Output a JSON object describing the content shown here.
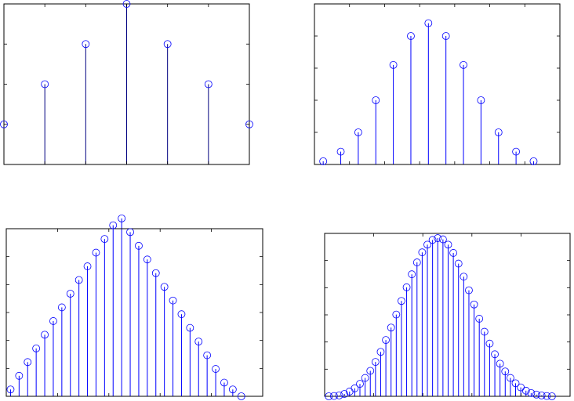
{
  "chart_data": [
    {
      "type": "stem",
      "color": "#0000ff",
      "stem_color": "#000080",
      "x": [
        0,
        1,
        2,
        3,
        4,
        5,
        6
      ],
      "values": [
        1,
        2,
        3,
        4,
        3,
        2,
        1
      ],
      "xlim": [
        0,
        6
      ],
      "ylim": [
        0,
        4
      ],
      "xticks": 6,
      "yticks": 4,
      "grid": false
    },
    {
      "type": "stem",
      "color": "#0000ff",
      "stem_color": "#0000ff",
      "x": [
        0,
        1,
        2,
        3,
        4,
        5,
        6,
        7,
        8,
        9,
        10,
        11,
        12
      ],
      "values": [
        1,
        4,
        10,
        20,
        31,
        40,
        44,
        40,
        31,
        20,
        10,
        4,
        1
      ],
      "xlim": [
        -0.5,
        13.5
      ],
      "ylim": [
        0,
        50
      ],
      "xticks": 7,
      "yticks": 5,
      "grid": false
    },
    {
      "type": "stem",
      "color": "#0000ff",
      "stem_color": "#0000ff",
      "x": [
        0,
        1,
        2,
        3,
        4,
        5,
        6,
        7,
        8,
        9,
        10,
        11,
        12,
        13,
        14,
        15,
        16,
        17,
        18,
        19,
        20,
        21,
        22,
        23,
        24,
        25,
        26,
        27
      ],
      "values": [
        1,
        3,
        5,
        7,
        9,
        11,
        13,
        15,
        17,
        19,
        21,
        23,
        25,
        26,
        24,
        22,
        20,
        18,
        16,
        14,
        12,
        10,
        8,
        6,
        4,
        2,
        1,
        0
      ],
      "xlim": [
        -0.5,
        29.5
      ],
      "ylim": [
        0,
        24.5
      ],
      "xticks": 5,
      "yticks": 6,
      "grid": false
    },
    {
      "type": "stem",
      "color": "#0000ff",
      "stem_color": "#0000ff",
      "x": [
        0,
        1,
        2,
        3,
        4,
        5,
        6,
        7,
        8,
        9,
        10,
        11,
        12,
        13,
        14,
        15,
        16,
        17,
        18,
        19,
        20,
        21,
        22,
        23,
        24,
        25,
        26,
        27,
        28,
        29,
        30,
        31,
        32,
        33,
        34,
        35,
        36,
        37,
        38,
        39,
        40,
        41,
        42,
        43
      ],
      "values": [
        0,
        0.05,
        0.15,
        0.4,
        0.8,
        1.35,
        2.1,
        3.1,
        4.3,
        5.8,
        7.5,
        9.5,
        11.6,
        13.8,
        16.1,
        18.4,
        20.6,
        22.6,
        24.3,
        25.6,
        26.4,
        26.7,
        26.5,
        25.6,
        24.2,
        22.4,
        20.2,
        17.9,
        15.5,
        13.1,
        10.9,
        8.9,
        7.1,
        5.5,
        4.2,
        3.1,
        2.2,
        1.5,
        0.95,
        0.55,
        0.3,
        0.15,
        0.05,
        0
      ],
      "xlim": [
        -0.8,
        46.5
      ],
      "ylim": [
        0,
        27.5
      ],
      "xticks": 5,
      "yticks": 6,
      "grid": false
    }
  ]
}
